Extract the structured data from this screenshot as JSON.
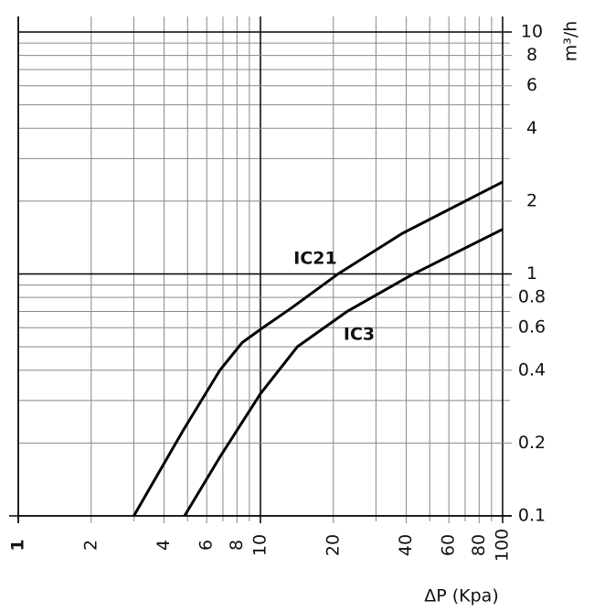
{
  "chart_data": {
    "type": "line",
    "x_label": "ΔP (Kpa)",
    "y_label": "m³/h",
    "xscale": "log",
    "yscale": "log",
    "grid": true,
    "xlim": [
      1,
      100
    ],
    "ylim": [
      0.1,
      11.6
    ],
    "xticks": [
      1,
      2,
      4,
      6,
      8,
      10,
      20,
      40,
      60,
      80,
      100
    ],
    "yticks": [
      0.1,
      0.2,
      0.4,
      0.6,
      0.8,
      1,
      2,
      4,
      6,
      8,
      10
    ],
    "series": [
      {
        "name": "IC21",
        "color": "#000000",
        "x": [
          3.0,
          4.8,
          6.8,
          8.4,
          10,
          13.6,
          20.9,
          38.5,
          100
        ],
        "values": [
          0.1,
          0.226,
          0.4,
          0.52,
          0.59,
          0.73,
          1.0,
          1.47,
          2.4
        ]
      },
      {
        "name": "IC3",
        "color": "#000000",
        "x": [
          4.86,
          6.8,
          10,
          14.2,
          22.8,
          42,
          100
        ],
        "values": [
          0.1,
          0.175,
          0.32,
          0.5,
          0.7,
          0.99,
          1.53
        ]
      }
    ]
  }
}
